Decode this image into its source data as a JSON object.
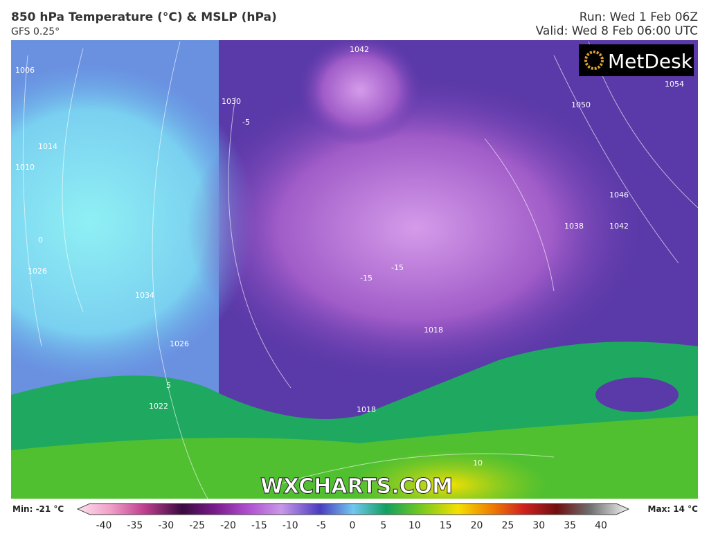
{
  "header": {
    "title": "850 hPa Temperature (°C) & MSLP (hPa)",
    "model": "GFS 0.25°",
    "run": "Run: Wed 1 Feb 06Z",
    "valid": "Valid: Wed 8 Feb 06:00 UTC"
  },
  "logo": "MetDesk",
  "watermark": "WXCHARTS.COM",
  "isobar_labels": [
    "1042",
    "1054",
    "1050",
    "1046",
    "1042",
    "1038",
    "1034",
    "1030",
    "1026",
    "1022",
    "1018",
    "1014",
    "1010",
    "1006",
    "1026",
    "1018"
  ],
  "temperature_labels": [
    "-15",
    "-15",
    "-5",
    "0",
    "5",
    "10"
  ],
  "colorbar": {
    "min_label": "Min: -21 °C",
    "max_label": "Max: 14 °C",
    "ticks": [
      -40,
      -35,
      -30,
      -25,
      -20,
      -15,
      -10,
      -5,
      0,
      5,
      10,
      15,
      20,
      25,
      30,
      35,
      40
    ]
  }
}
